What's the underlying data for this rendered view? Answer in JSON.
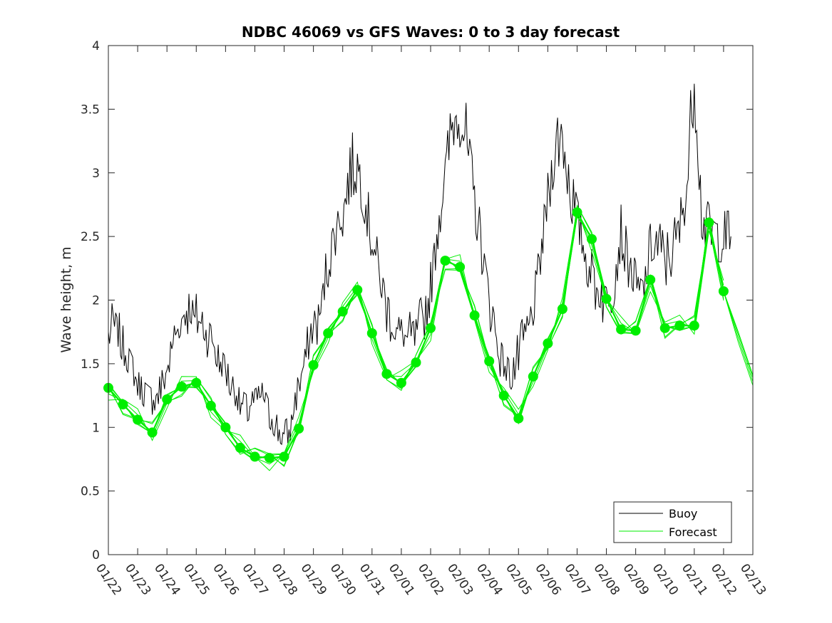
{
  "chart_data": {
    "type": "line",
    "title": "NDBC 46069 vs GFS Waves: 0 to 3 day forecast",
    "xlabel": "",
    "ylabel": "Wave height, m",
    "xlim": [
      0,
      22
    ],
    "ylim": [
      0,
      4
    ],
    "yticks": [
      0,
      0.5,
      1,
      1.5,
      2,
      2.5,
      3,
      3.5,
      4
    ],
    "ytick_labels": [
      "0",
      "0.5",
      "1",
      "1.5",
      "2",
      "2.5",
      "3",
      "3.5",
      "4"
    ],
    "categories": [
      "01/22",
      "01/23",
      "01/24",
      "01/25",
      "01/26",
      "01/27",
      "01/28",
      "01/29",
      "01/30",
      "01/31",
      "02/01",
      "02/02",
      "02/03",
      "02/04",
      "02/05",
      "02/06",
      "02/07",
      "02/08",
      "02/09",
      "02/10",
      "02/11",
      "02/12",
      "02/13"
    ],
    "legend": {
      "position": "bottom-right",
      "entries": [
        "Buoy",
        "Forecast"
      ]
    },
    "series": [
      {
        "name": "Buoy",
        "color": "#000000",
        "x": [
          0,
          0.25,
          0.5,
          0.75,
          1,
          1.25,
          1.5,
          1.75,
          2,
          2.25,
          2.5,
          2.75,
          3,
          3.25,
          3.5,
          3.75,
          4,
          4.25,
          4.5,
          4.75,
          5,
          5.25,
          5.5,
          5.75,
          6,
          6.25,
          6.5,
          6.75,
          7,
          7.25,
          7.5,
          7.75,
          8,
          8.25,
          8.5,
          8.75,
          9,
          9.25,
          9.5,
          9.75,
          10,
          10.25,
          10.5,
          10.75,
          11,
          11.25,
          11.5,
          11.75,
          12,
          12.25,
          12.5,
          12.75,
          13,
          13.25,
          13.5,
          13.75,
          14,
          14.25,
          14.5,
          14.75,
          15,
          15.25,
          15.5,
          15.75,
          16,
          16.25,
          16.5,
          16.75,
          17,
          17.25,
          17.5,
          17.75,
          18,
          18.25,
          18.5,
          18.75,
          19,
          19.25,
          19.5,
          19.75,
          20,
          20.25,
          20.5,
          20.75,
          21,
          21.25
        ],
        "values": [
          1.75,
          1.8,
          1.6,
          1.5,
          1.35,
          1.25,
          1.2,
          1.3,
          1.45,
          1.7,
          1.85,
          1.95,
          1.85,
          1.8,
          1.7,
          1.55,
          1.45,
          1.3,
          1.2,
          1.15,
          1.2,
          1.25,
          1.1,
          1.0,
          0.95,
          1.0,
          1.35,
          1.55,
          1.8,
          1.9,
          2.3,
          2.55,
          2.7,
          3.0,
          3.05,
          2.8,
          2.5,
          2.2,
          1.95,
          1.8,
          1.75,
          1.7,
          1.75,
          1.85,
          2.1,
          2.6,
          3.0,
          3.4,
          3.5,
          3.2,
          2.8,
          2.4,
          2.0,
          1.7,
          1.5,
          1.4,
          1.55,
          1.75,
          1.9,
          2.3,
          2.8,
          3.2,
          3.3,
          2.9,
          2.6,
          2.4,
          2.2,
          2.05,
          2.0,
          2.15,
          2.55,
          2.3,
          2.1,
          2.05,
          2.4,
          2.45,
          2.3,
          2.4,
          2.55,
          2.9,
          3.8,
          2.7,
          2.55,
          2.5,
          2.5,
          2.5
        ]
      },
      {
        "name": "Forecast",
        "color": "#00ee00",
        "x": [
          0,
          0.5,
          1,
          1.5,
          2,
          2.5,
          3,
          3.5,
          4,
          4.5,
          5,
          5.5,
          6,
          6.5,
          7,
          7.5,
          8,
          8.5,
          9,
          9.5,
          10,
          10.5,
          11,
          11.5,
          12,
          12.5,
          13,
          13.5,
          14,
          14.5,
          15,
          15.5,
          16,
          16.5,
          17,
          17.5,
          18,
          18.5,
          19,
          19.5,
          20,
          20.5,
          21
        ],
        "values": [
          1.31,
          1.18,
          1.06,
          0.96,
          1.22,
          1.32,
          1.35,
          1.17,
          1.0,
          0.84,
          0.77,
          0.76,
          0.77,
          0.99,
          1.49,
          1.74,
          1.91,
          2.08,
          1.74,
          1.42,
          1.35,
          1.51,
          1.78,
          2.31,
          2.26,
          1.88,
          1.52,
          1.25,
          1.07,
          1.4,
          1.66,
          1.93,
          2.69,
          2.48,
          2.01,
          1.77,
          1.76,
          2.16,
          1.78,
          1.8,
          1.8,
          2.61,
          2.07
        ]
      }
    ]
  }
}
